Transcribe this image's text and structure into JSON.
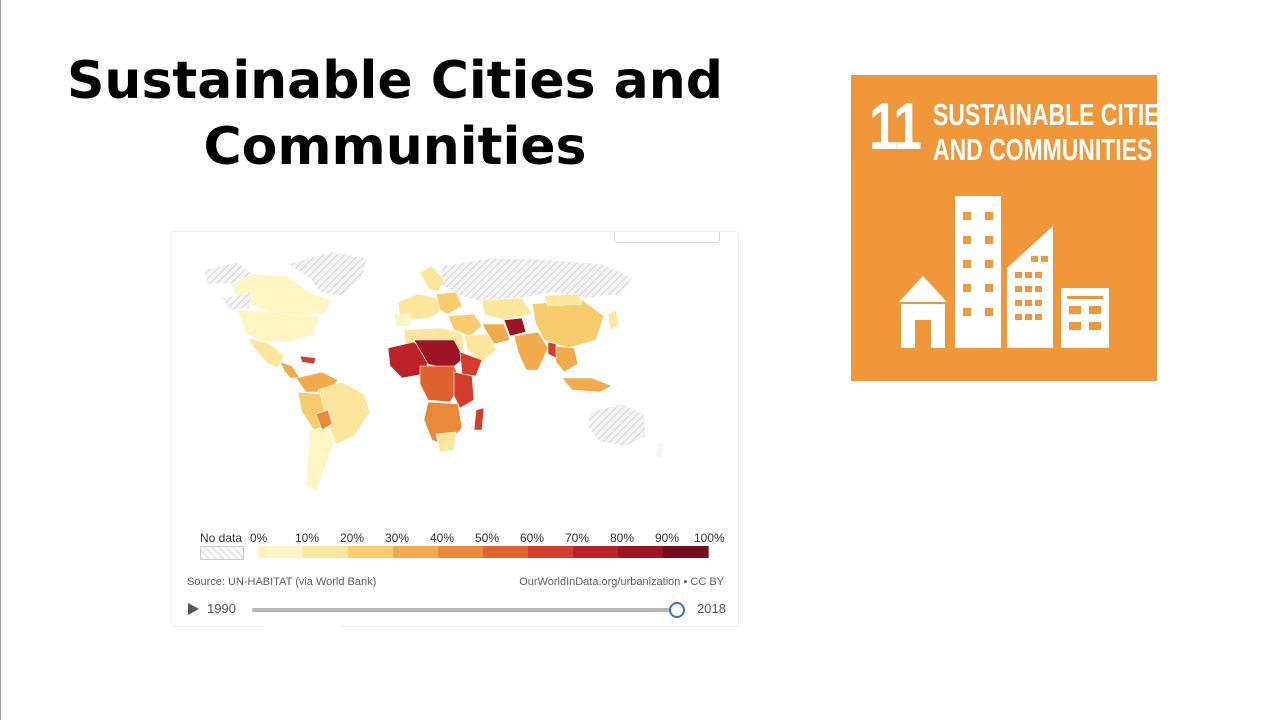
{
  "slide": {
    "title": "Sustainable Cities and Communities"
  },
  "map_chart": {
    "legend": {
      "no_data_label": "No data",
      "bins": [
        {
          "label": "0%",
          "color": "#fff6c3"
        },
        {
          "label": "10%",
          "color": "#fde59b"
        },
        {
          "label": "20%",
          "color": "#f8cb6d"
        },
        {
          "label": "30%",
          "color": "#f1ab4c"
        },
        {
          "label": "40%",
          "color": "#e98939"
        },
        {
          "label": "50%",
          "color": "#e0632f"
        },
        {
          "label": "60%",
          "color": "#d33d2b"
        },
        {
          "label": "70%",
          "color": "#bd2227"
        },
        {
          "label": "80%",
          "color": "#9e1424"
        },
        {
          "label": "90%",
          "color": "#750d1e"
        }
      ],
      "max_label": "100%"
    },
    "source": "Source: UN-HABITAT (via World Bank)",
    "credit": "OurWorldInData.org/urbanization • CC BY",
    "timeline": {
      "start_year": "1990",
      "end_year": "2018",
      "position_fraction": 1.0
    }
  },
  "sdg_tile": {
    "number": "11",
    "label_line1": "SUSTAINABLE CITIES",
    "label_line2": "AND COMMUNITIES",
    "color": "#f0973a",
    "icon": "city-buildings-icon"
  }
}
